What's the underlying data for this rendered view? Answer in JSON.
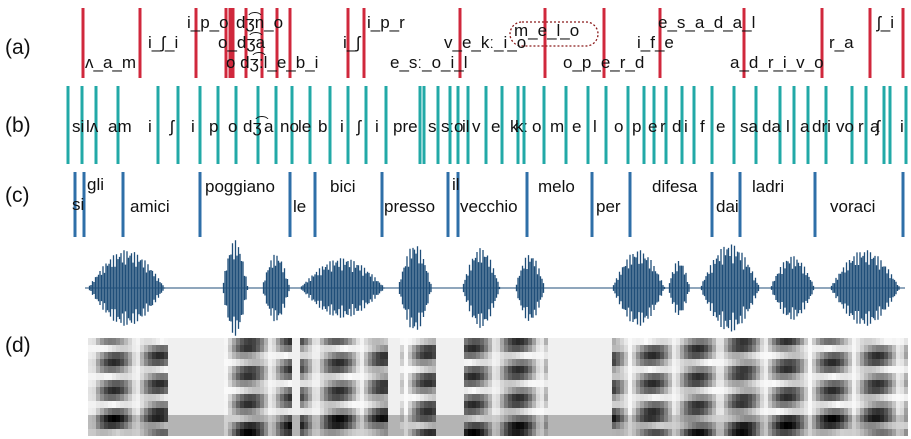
{
  "panel_labels": [
    "(a)",
    "(b)",
    "(c)",
    "(d)"
  ],
  "row_a": {
    "labels": [
      "ʌ_a_m",
      "i_ʃ_i",
      "i_p_o",
      "dʒ͡n_o",
      "o_dʒ͡a",
      "o dʒ͡:l_e_b_i",
      "i_ʃ",
      "i_p_r",
      "e_sː_o_i_l",
      "v_e_kː_i_o",
      "m_e_l_o",
      "o_p_e_r_d",
      "i_f_e",
      "e_s_a_d_a_l",
      "a_d_r_i_v_o",
      "r_a",
      "ʃ_i"
    ]
  },
  "row_b": {
    "labels": [
      "si",
      "lʌ",
      "am",
      "i",
      "ʃ",
      "i",
      "p",
      "o",
      "dʒ͡",
      "a",
      "no",
      "le",
      "b",
      "i",
      "ʃ",
      "i",
      "pre",
      "s",
      "sː",
      "o",
      "il",
      "v",
      "e",
      "k",
      "kː",
      "o",
      "m",
      "e",
      "l",
      "o",
      "p",
      "e",
      "r",
      "d",
      "i",
      "f",
      "e",
      "sa",
      "da",
      "l",
      "a",
      "dri",
      "vo",
      "r",
      "a",
      "ʃ",
      "i"
    ]
  },
  "row_c": {
    "words": [
      "si",
      "gli",
      "amici",
      "poggiano",
      "le",
      "bici",
      "presso",
      "il",
      "vecchio",
      "melo",
      "per",
      "difesa",
      "dai",
      "ladri",
      "voraci"
    ]
  }
}
